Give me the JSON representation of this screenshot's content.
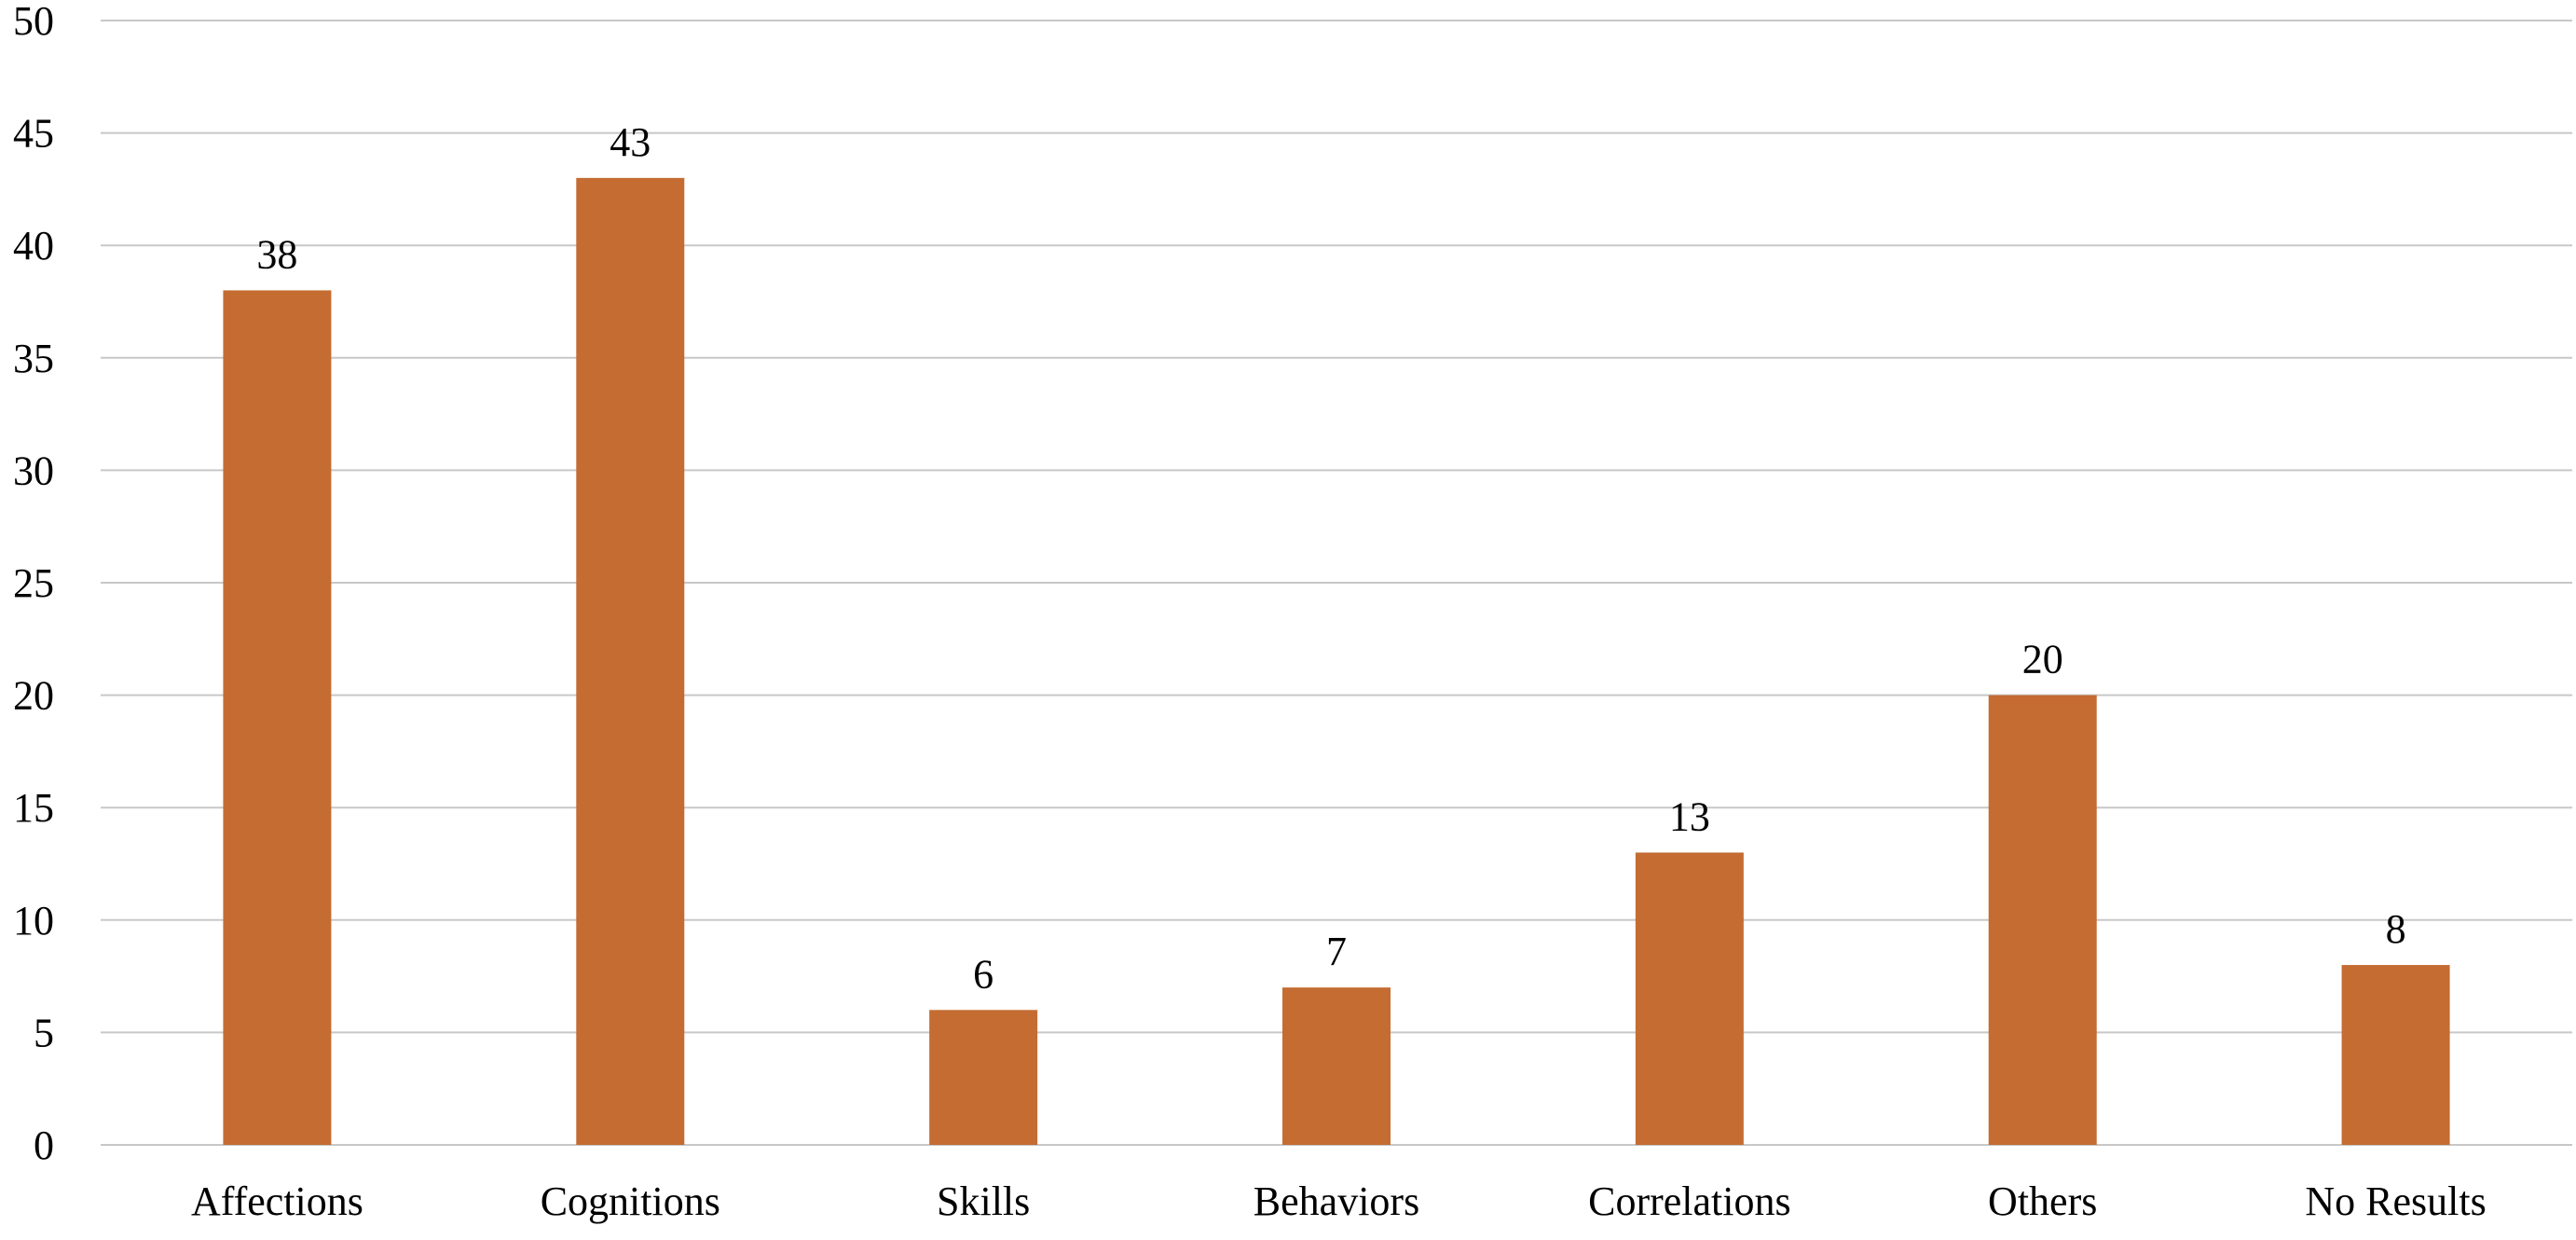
{
  "chart_data": {
    "type": "bar",
    "title": "",
    "xlabel": "",
    "ylabel": "",
    "categories": [
      "Affections",
      "Cognitions",
      "Skills",
      "Behaviors",
      "Correlations",
      "Others",
      "No Results"
    ],
    "values": [
      38,
      43,
      6,
      7,
      13,
      20,
      8
    ],
    "data_labels": [
      "38",
      "43",
      "6",
      "7",
      "13",
      "20",
      "8"
    ],
    "ylim": [
      0,
      50
    ],
    "yticks": [
      "0",
      "5",
      "10",
      "15",
      "20",
      "25",
      "30",
      "35",
      "40",
      "45",
      "50"
    ],
    "grid": true,
    "legend": "none",
    "colors": {
      "bar": "#C46C32",
      "grid": "#C8C8C8",
      "text": "#000000"
    }
  }
}
